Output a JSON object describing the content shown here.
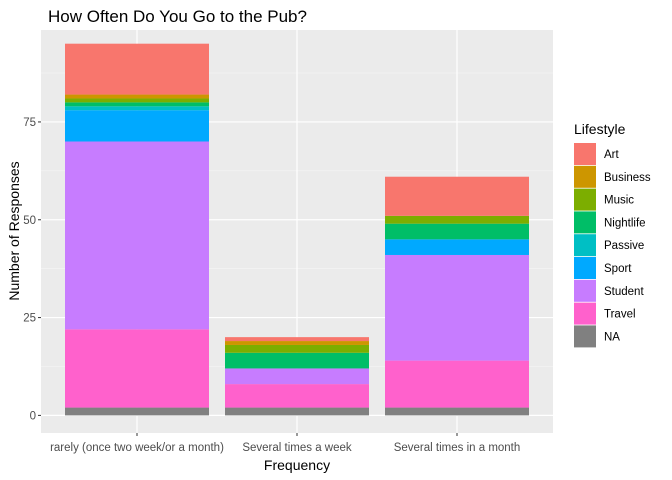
{
  "chart_data": {
    "type": "bar",
    "stacked": true,
    "title": "How Often Do You Go to the Pub?",
    "xlabel": "Frequency",
    "ylabel": "Number of Responses",
    "ylim": [
      -4.5,
      98.5
    ],
    "yticks": [
      0,
      25,
      50,
      75
    ],
    "grid": true,
    "legend_position": "right",
    "legend_title": "Lifestyle",
    "categories": [
      "rarely (once two week/or a month)",
      "Several times a week",
      "Several times in a month"
    ],
    "series": [
      {
        "name": "Art",
        "color": "#F8766D",
        "values": [
          13,
          1,
          10
        ]
      },
      {
        "name": "Business",
        "color": "#CD9600",
        "values": [
          1,
          1,
          0
        ]
      },
      {
        "name": "Music",
        "color": "#7CAE00",
        "values": [
          1,
          2,
          2
        ]
      },
      {
        "name": "Nightlife",
        "color": "#00BE67",
        "values": [
          1,
          4,
          4
        ]
      },
      {
        "name": "Passive",
        "color": "#00BFC4",
        "values": [
          1,
          0,
          0
        ]
      },
      {
        "name": "Sport",
        "color": "#00A9FF",
        "values": [
          8,
          0,
          4
        ]
      },
      {
        "name": "Student",
        "color": "#C77CFF",
        "values": [
          48,
          4,
          27
        ]
      },
      {
        "name": "Travel",
        "color": "#FF61CC",
        "values": [
          20,
          6,
          12
        ]
      },
      {
        "name": "NA",
        "color": "#808080",
        "values": [
          2,
          2,
          2
        ]
      }
    ]
  }
}
